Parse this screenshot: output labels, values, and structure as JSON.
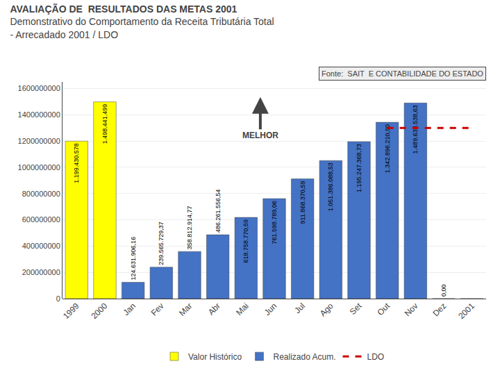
{
  "chart_data": {
    "type": "bar",
    "title": "AVALIAÇÃO DE  RESULTADOS DAS METAS 2001",
    "subtitle": [
      "Demonstrativo do Comportamento da Receita Tributária Total",
      "- Arrecadado 2001 / LDO"
    ],
    "annotations": [
      "Fonte:  SAIT  E CONTABILIDADE DO ESTADO",
      "MELHOR"
    ],
    "categories": [
      "1999",
      "2000",
      "Jan",
      "Fev",
      "Mar",
      "Abr",
      "Mai",
      "Jun",
      "Jul",
      "Ago",
      "Set",
      "Out",
      "Nov",
      "Dez",
      "2001"
    ],
    "series": [
      {
        "name": "Valor Histórico",
        "color": "#ffff00",
        "values": [
          1199430578,
          1498441499,
          null,
          null,
          null,
          null,
          null,
          null,
          null,
          null,
          null,
          null,
          null,
          null,
          null
        ],
        "value_labels": [
          "1.199.430.578",
          "1.498.441.499",
          null,
          null,
          null,
          null,
          null,
          null,
          null,
          null,
          null,
          null,
          null,
          null,
          null
        ]
      },
      {
        "name": "Realizado Acum.",
        "color": "#4472c4",
        "values": [
          null,
          null,
          124631906.16,
          239565729.37,
          358812914.77,
          486261556.54,
          618758770.59,
          761598789.06,
          911868370.59,
          1051386088.53,
          1195247368.73,
          1342896210.9,
          1489638538.63,
          0.0,
          0.0
        ],
        "value_labels": [
          null,
          null,
          "124.631.906,16",
          "239.565.729,37",
          "358.812.914,77",
          "486.261.556,54",
          "618.758.770,59",
          "761.598.789,06",
          "911.868.370,59",
          "1.051.386.088,53",
          "1.195.247.368,73",
          "1.342.896.210,90",
          "1.489.638.538,63",
          "0,00",
          null
        ]
      },
      {
        "name": "LDO",
        "type": "line",
        "line_style": "dashed",
        "color": "#cc0000",
        "values": [
          null,
          null,
          null,
          null,
          null,
          null,
          null,
          null,
          null,
          null,
          null,
          1300000000,
          1300000000,
          1300000000,
          1300000000
        ]
      }
    ],
    "ylim": [
      0,
      1650000000
    ],
    "yticks": [
      0,
      200000000,
      400000000,
      600000000,
      800000000,
      1000000000,
      1200000000,
      1400000000,
      1600000000
    ],
    "grid": true,
    "data_labels": true,
    "legend": "bottom"
  }
}
